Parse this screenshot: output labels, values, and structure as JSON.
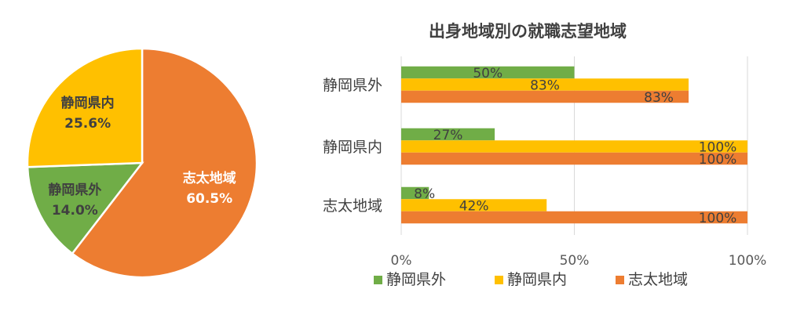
{
  "chart_data": [
    {
      "type": "pie",
      "slices": [
        {
          "name": "志太地域",
          "value": 60.5,
          "label": "60.5%",
          "color": "#ED7D31"
        },
        {
          "name": "静岡県外",
          "value": 14.0,
          "label": "14.0%",
          "color": "#70AD47"
        },
        {
          "name": "静岡県内",
          "value": 25.6,
          "label": "25.6%",
          "color": "#FFC000"
        }
      ]
    },
    {
      "type": "bar",
      "orientation": "horizontal",
      "title": "出身地域別の就職志望地域",
      "categories": [
        "静岡県外",
        "静岡県内",
        "志太地域"
      ],
      "series": [
        {
          "name": "静岡県外",
          "color": "#70AD47",
          "values": [
            50,
            27,
            8
          ],
          "labels": [
            "50%",
            "27%",
            "8%"
          ]
        },
        {
          "name": "静岡県内",
          "color": "#FFC000",
          "values": [
            83,
            100,
            42
          ],
          "labels": [
            "83%",
            "100%",
            "42%"
          ]
        },
        {
          "name": "志太地域",
          "color": "#ED7D31",
          "values": [
            83,
            100,
            100
          ],
          "labels": [
            "83%",
            "100%",
            "100%"
          ]
        }
      ],
      "xlim": [
        0,
        100
      ],
      "xticks": [
        "0%",
        "50%",
        "100%"
      ],
      "grid": true,
      "legend": "bottom"
    }
  ]
}
